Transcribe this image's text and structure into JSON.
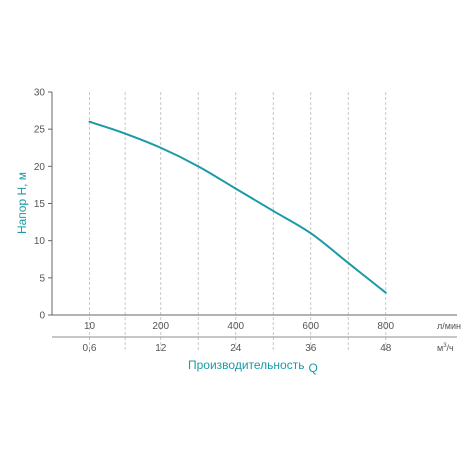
{
  "chart_data": {
    "type": "line",
    "ylabel": "Напор H, м",
    "xlabel": "Производительность",
    "xlabel_symbol": "Q",
    "ylim": [
      0,
      30
    ],
    "yticks": [
      "0",
      "5",
      "10",
      "15",
      "20",
      "25",
      "30"
    ],
    "x_axis_primary": {
      "unit": "л/мин",
      "ticks": [
        "10",
        "200",
        "400",
        "600",
        "800"
      ],
      "values": [
        10,
        200,
        400,
        600,
        800
      ]
    },
    "x_axis_secondary": {
      "unit_base": "м",
      "unit_sup": "3",
      "unit_tail": "/ч",
      "ticks": [
        "0,6",
        "12",
        "24",
        "36",
        "48"
      ]
    },
    "xlim": [
      -90,
      990
    ],
    "grid": "vertical dashed",
    "series": [
      {
        "color": "#1a9aa6",
        "x": [
          10,
          100,
          200,
          300,
          400,
          500,
          600,
          700,
          800
        ],
        "y": [
          26,
          24.5,
          22.5,
          20,
          17,
          14,
          11,
          7,
          3
        ]
      }
    ],
    "colors": {
      "curve": "#1a9aa6",
      "axis_title": "#1a9aa6",
      "axis": "#666666",
      "grid": "#bbbbbb"
    }
  }
}
